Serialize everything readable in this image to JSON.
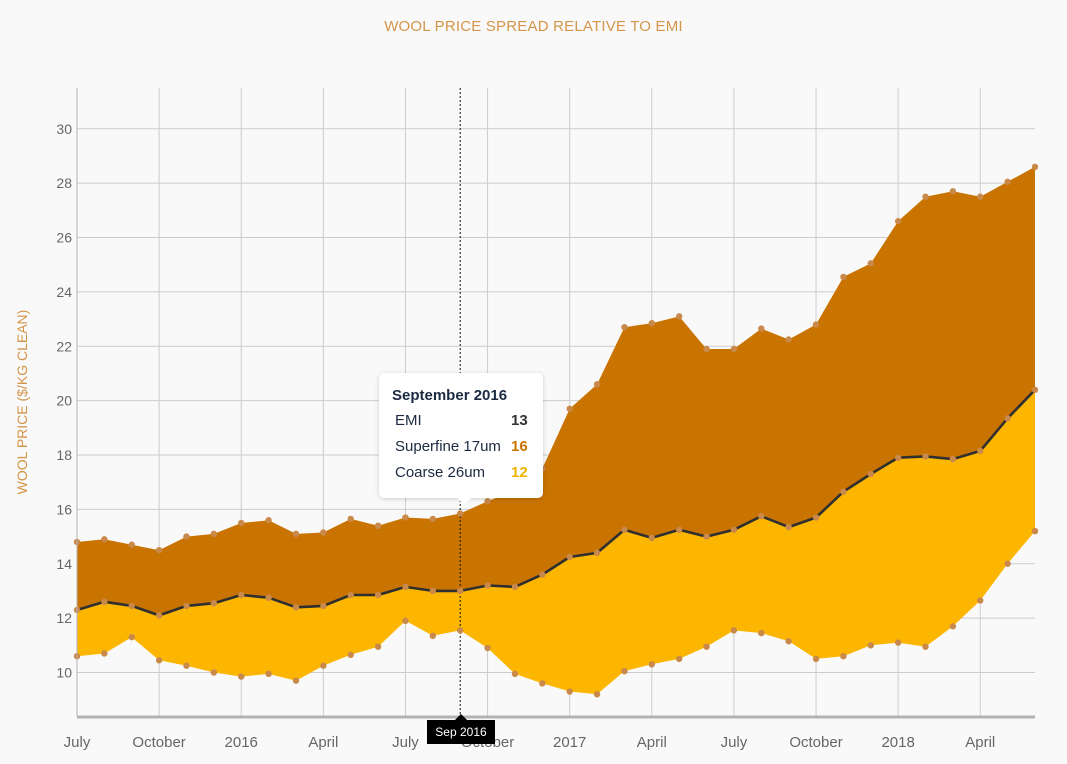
{
  "title": "WOOL PRICE SPREAD RELATIVE TO EMI",
  "colors": {
    "title": "#d4954a",
    "superfine_fill": "#c97400",
    "coarse_fill": "#fdb600",
    "emi_line": "#2f2f2f",
    "marker": "#c9894a",
    "grid": "#cccccc",
    "axis": "#b3b3b3",
    "text": "#666666"
  },
  "tooltip": {
    "title": "September 2016",
    "rows": [
      {
        "label": "EMI",
        "value": "13",
        "color": "#333333"
      },
      {
        "label": "Superfine 17um",
        "value": "16",
        "color": "#c97400"
      },
      {
        "label": "Coarse 26um",
        "value": "12",
        "color": "#f0b400"
      }
    ]
  },
  "crosshair_label": "Sep 2016",
  "chart_data": {
    "type": "area",
    "title": "WOOL PRICE SPREAD RELATIVE TO EMI",
    "xlabel": "",
    "ylabel": "WOOL PRICE ($/KG CLEAN)",
    "ylim": [
      8.4,
      31.5
    ],
    "yticks": [
      10,
      12,
      14,
      16,
      18,
      20,
      22,
      24,
      26,
      28,
      30
    ],
    "xticks": [
      {
        "label": "July",
        "date": "2015-07"
      },
      {
        "label": "October",
        "date": "2015-10"
      },
      {
        "label": "2016",
        "date": "2016-01"
      },
      {
        "label": "April",
        "date": "2016-04"
      },
      {
        "label": "July",
        "date": "2016-07"
      },
      {
        "label": "October",
        "date": "2016-10"
      },
      {
        "label": "2017",
        "date": "2017-01"
      },
      {
        "label": "April",
        "date": "2017-04"
      },
      {
        "label": "July",
        "date": "2017-07"
      },
      {
        "label": "October",
        "date": "2017-10"
      },
      {
        "label": "2018",
        "date": "2018-01"
      },
      {
        "label": "April",
        "date": "2018-04"
      }
    ],
    "x": [
      "2015-07",
      "2015-08",
      "2015-09",
      "2015-10",
      "2015-11",
      "2015-12",
      "2016-01",
      "2016-02",
      "2016-03",
      "2016-04",
      "2016-05",
      "2016-06",
      "2016-07",
      "2016-08",
      "2016-09",
      "2016-10",
      "2016-11",
      "2016-12",
      "2017-01",
      "2017-02",
      "2017-03",
      "2017-04",
      "2017-05",
      "2017-06",
      "2017-07",
      "2017-08",
      "2017-09",
      "2017-10",
      "2017-11",
      "2017-12",
      "2018-01",
      "2018-02",
      "2018-03",
      "2018-04",
      "2018-05",
      "2018-06"
    ],
    "grid": true,
    "legend": "none",
    "series": [
      {
        "name": "Superfine 17um",
        "type": "area",
        "values": [
          14.8,
          14.9,
          14.7,
          14.5,
          15.0,
          15.1,
          15.5,
          15.6,
          15.1,
          15.15,
          15.65,
          15.4,
          15.7,
          15.65,
          15.85,
          16.3,
          16.7,
          17.5,
          19.7,
          20.6,
          22.7,
          22.85,
          23.1,
          21.9,
          21.9,
          22.65,
          22.25,
          22.8,
          24.55,
          25.05,
          26.6,
          27.5,
          27.7,
          27.5,
          28.05,
          28.6
        ]
      },
      {
        "name": "EMI",
        "type": "line",
        "values": [
          12.3,
          12.6,
          12.45,
          12.1,
          12.45,
          12.55,
          12.85,
          12.75,
          12.4,
          12.45,
          12.85,
          12.85,
          13.15,
          13.0,
          13.0,
          13.2,
          13.15,
          13.6,
          14.25,
          14.4,
          15.25,
          14.95,
          15.25,
          15.0,
          15.25,
          15.75,
          15.35,
          15.7,
          16.65,
          17.3,
          17.9,
          17.95,
          17.85,
          18.15,
          19.35,
          20.4
        ]
      },
      {
        "name": "Coarse 26um",
        "type": "area",
        "values": [
          10.6,
          10.7,
          11.3,
          10.45,
          10.25,
          10.0,
          9.85,
          9.95,
          9.7,
          10.25,
          10.65,
          10.95,
          11.9,
          11.35,
          11.55,
          10.9,
          9.95,
          9.6,
          9.3,
          9.2,
          10.05,
          10.3,
          10.5,
          10.95,
          11.55,
          11.45,
          11.15,
          10.5,
          10.6,
          11.0,
          11.1,
          10.95,
          11.7,
          12.65,
          14.0,
          15.2
        ]
      }
    ]
  }
}
